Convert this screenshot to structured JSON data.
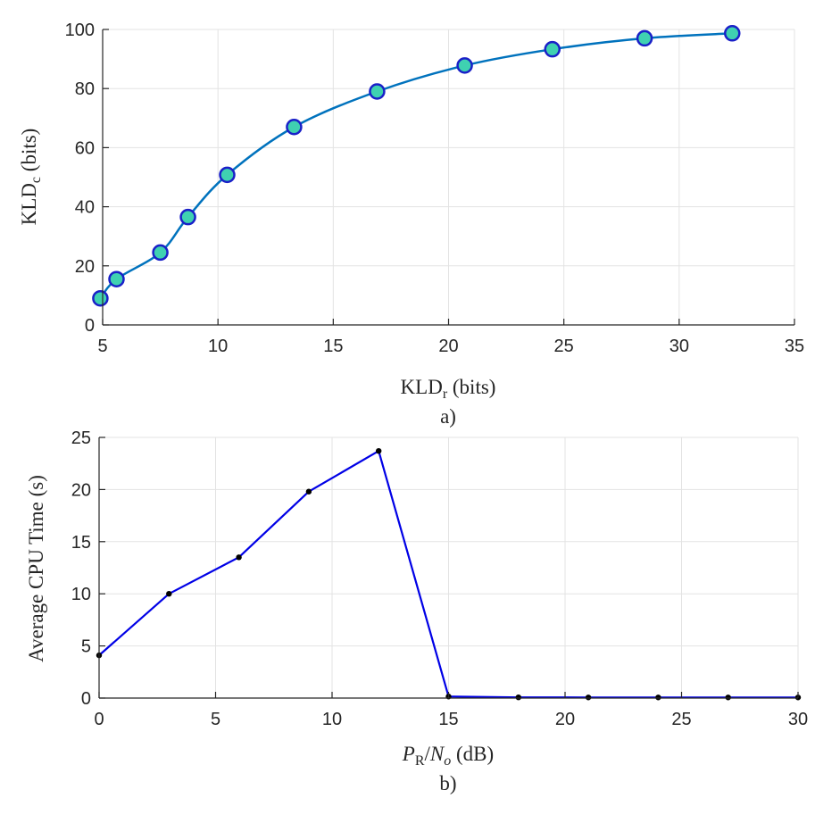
{
  "chart_data": [
    {
      "type": "line",
      "title": "",
      "caption": "a)",
      "xlabel": {
        "main": "KLD",
        "sub": "r",
        "unit": "(bits)"
      },
      "ylabel": {
        "main": "KLD",
        "sub": "c",
        "unit": "(bits)"
      },
      "xlim": [
        5,
        35
      ],
      "ylim": [
        0,
        100
      ],
      "xticks": [
        5,
        10,
        15,
        20,
        25,
        30,
        35
      ],
      "yticks": [
        0,
        20,
        40,
        60,
        80,
        100
      ],
      "grid": true,
      "series": [
        {
          "name": "KLDc vs KLDr",
          "line_color": "#0072BD",
          "marker": "circle",
          "marker_face": "#3fd1b1",
          "marker_edge": "#1a20c8",
          "x": [
            4.9,
            5.6,
            7.5,
            8.7,
            10.4,
            13.3,
            16.9,
            20.7,
            24.5,
            28.5,
            32.3
          ],
          "y": [
            9,
            15.5,
            24.5,
            36.5,
            50.8,
            67,
            79,
            87.8,
            93.3,
            97,
            98.7
          ]
        }
      ]
    },
    {
      "type": "line",
      "title": "",
      "caption": "b)",
      "xlabel": {
        "main": "P",
        "sub": "R",
        "over": "N",
        "over_sub": "o",
        "unit": "(dB)"
      },
      "ylabel": {
        "text": "Average CPU Time (s)"
      },
      "xlim": [
        0,
        30
      ],
      "ylim": [
        0,
        25
      ],
      "xticks": [
        0,
        5,
        10,
        15,
        20,
        25,
        30
      ],
      "yticks": [
        0,
        5,
        10,
        15,
        20,
        25
      ],
      "grid": true,
      "series": [
        {
          "name": "Average CPU Time",
          "line_color": "#0000e6",
          "marker": "dot",
          "marker_face": "#000000",
          "x": [
            0,
            3,
            6,
            9,
            12,
            15,
            18,
            21,
            24,
            27,
            30
          ],
          "y": [
            4.1,
            10,
            13.5,
            19.8,
            23.7,
            0.15,
            0.07,
            0.06,
            0.06,
            0.06,
            0.06
          ]
        }
      ]
    }
  ]
}
